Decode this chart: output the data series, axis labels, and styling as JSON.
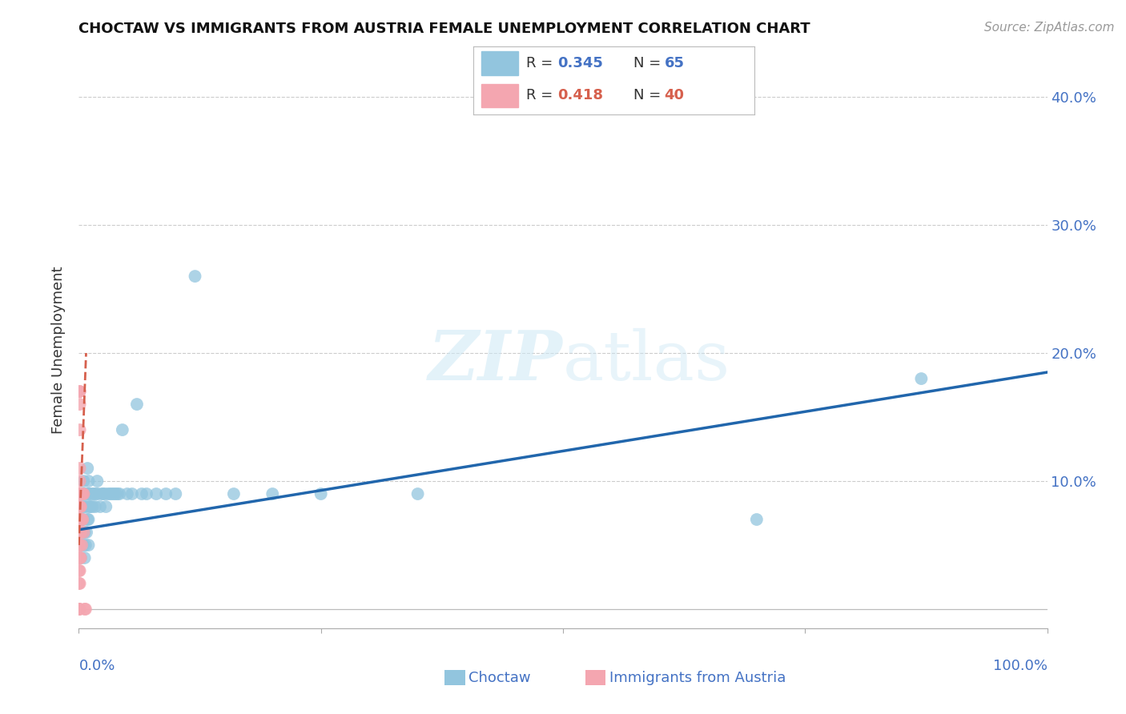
{
  "title": "CHOCTAW VS IMMIGRANTS FROM AUSTRIA FEMALE UNEMPLOYMENT CORRELATION CHART",
  "source": "Source: ZipAtlas.com",
  "ylabel": "Female Unemployment",
  "xlim": [
    0.0,
    1.0
  ],
  "ylim": [
    -0.015,
    0.42
  ],
  "ytick_vals": [
    0.0,
    0.1,
    0.2,
    0.3,
    0.4
  ],
  "ytick_labels_right": [
    "",
    "10.0%",
    "20.0%",
    "30.0%",
    "40.0%"
  ],
  "choctaw_color": "#92c5de",
  "austria_color": "#f4a6b0",
  "trend_blue": "#2166ac",
  "trend_pink": "#d6604d",
  "background_color": "#ffffff",
  "watermark_color": "#cde8f5",
  "legend_r1": "R = 0.345",
  "legend_n1": "N = 65",
  "legend_r2": "R = 0.418",
  "legend_n2": "N = 40",
  "label_color": "#4472c4",
  "choctaw_x": [
    0.001,
    0.002,
    0.002,
    0.003,
    0.003,
    0.003,
    0.004,
    0.004,
    0.005,
    0.005,
    0.005,
    0.005,
    0.006,
    0.006,
    0.006,
    0.007,
    0.007,
    0.008,
    0.008,
    0.009,
    0.009,
    0.009,
    0.01,
    0.01,
    0.01,
    0.01,
    0.011,
    0.011,
    0.012,
    0.013,
    0.014,
    0.015,
    0.016,
    0.017,
    0.018,
    0.019,
    0.02,
    0.022,
    0.024,
    0.025,
    0.027,
    0.028,
    0.03,
    0.032,
    0.034,
    0.036,
    0.038,
    0.04,
    0.042,
    0.045,
    0.05,
    0.055,
    0.06,
    0.065,
    0.07,
    0.08,
    0.09,
    0.1,
    0.12,
    0.16,
    0.2,
    0.25,
    0.35,
    0.7,
    0.87
  ],
  "choctaw_y": [
    0.07,
    0.04,
    0.08,
    0.05,
    0.07,
    0.09,
    0.06,
    0.08,
    0.05,
    0.07,
    0.09,
    0.1,
    0.04,
    0.06,
    0.08,
    0.05,
    0.09,
    0.06,
    0.08,
    0.07,
    0.09,
    0.11,
    0.05,
    0.07,
    0.09,
    0.1,
    0.08,
    0.09,
    0.08,
    0.09,
    0.08,
    0.09,
    0.09,
    0.08,
    0.09,
    0.1,
    0.09,
    0.08,
    0.09,
    0.09,
    0.09,
    0.08,
    0.09,
    0.09,
    0.09,
    0.09,
    0.09,
    0.09,
    0.09,
    0.14,
    0.09,
    0.09,
    0.16,
    0.09,
    0.09,
    0.09,
    0.09,
    0.09,
    0.26,
    0.09,
    0.09,
    0.09,
    0.09,
    0.07,
    0.18
  ],
  "austria_x": [
    0.0,
    0.0,
    0.0,
    0.0,
    0.0,
    0.0,
    0.0,
    0.0,
    0.001,
    0.001,
    0.001,
    0.001,
    0.001,
    0.001,
    0.001,
    0.001,
    0.001,
    0.001,
    0.001,
    0.001,
    0.001,
    0.001,
    0.001,
    0.001,
    0.001,
    0.001,
    0.002,
    0.002,
    0.002,
    0.002,
    0.002,
    0.003,
    0.003,
    0.003,
    0.004,
    0.004,
    0.005,
    0.005,
    0.006,
    0.007
  ],
  "austria_y": [
    0.0,
    0.0,
    0.0,
    0.0,
    0.02,
    0.03,
    0.04,
    0.05,
    0.0,
    0.02,
    0.03,
    0.04,
    0.05,
    0.06,
    0.07,
    0.07,
    0.08,
    0.08,
    0.09,
    0.09,
    0.1,
    0.11,
    0.14,
    0.16,
    0.17,
    0.17,
    0.04,
    0.06,
    0.08,
    0.09,
    0.09,
    0.05,
    0.07,
    0.09,
    0.07,
    0.09,
    0.06,
    0.09,
    0.0,
    0.0
  ],
  "choctaw_trend_x": [
    0.0,
    1.0
  ],
  "choctaw_trend_y": [
    0.062,
    0.185
  ],
  "austria_trend_x": [
    0.0,
    0.0075
  ],
  "austria_trend_y": [
    0.05,
    0.2
  ]
}
